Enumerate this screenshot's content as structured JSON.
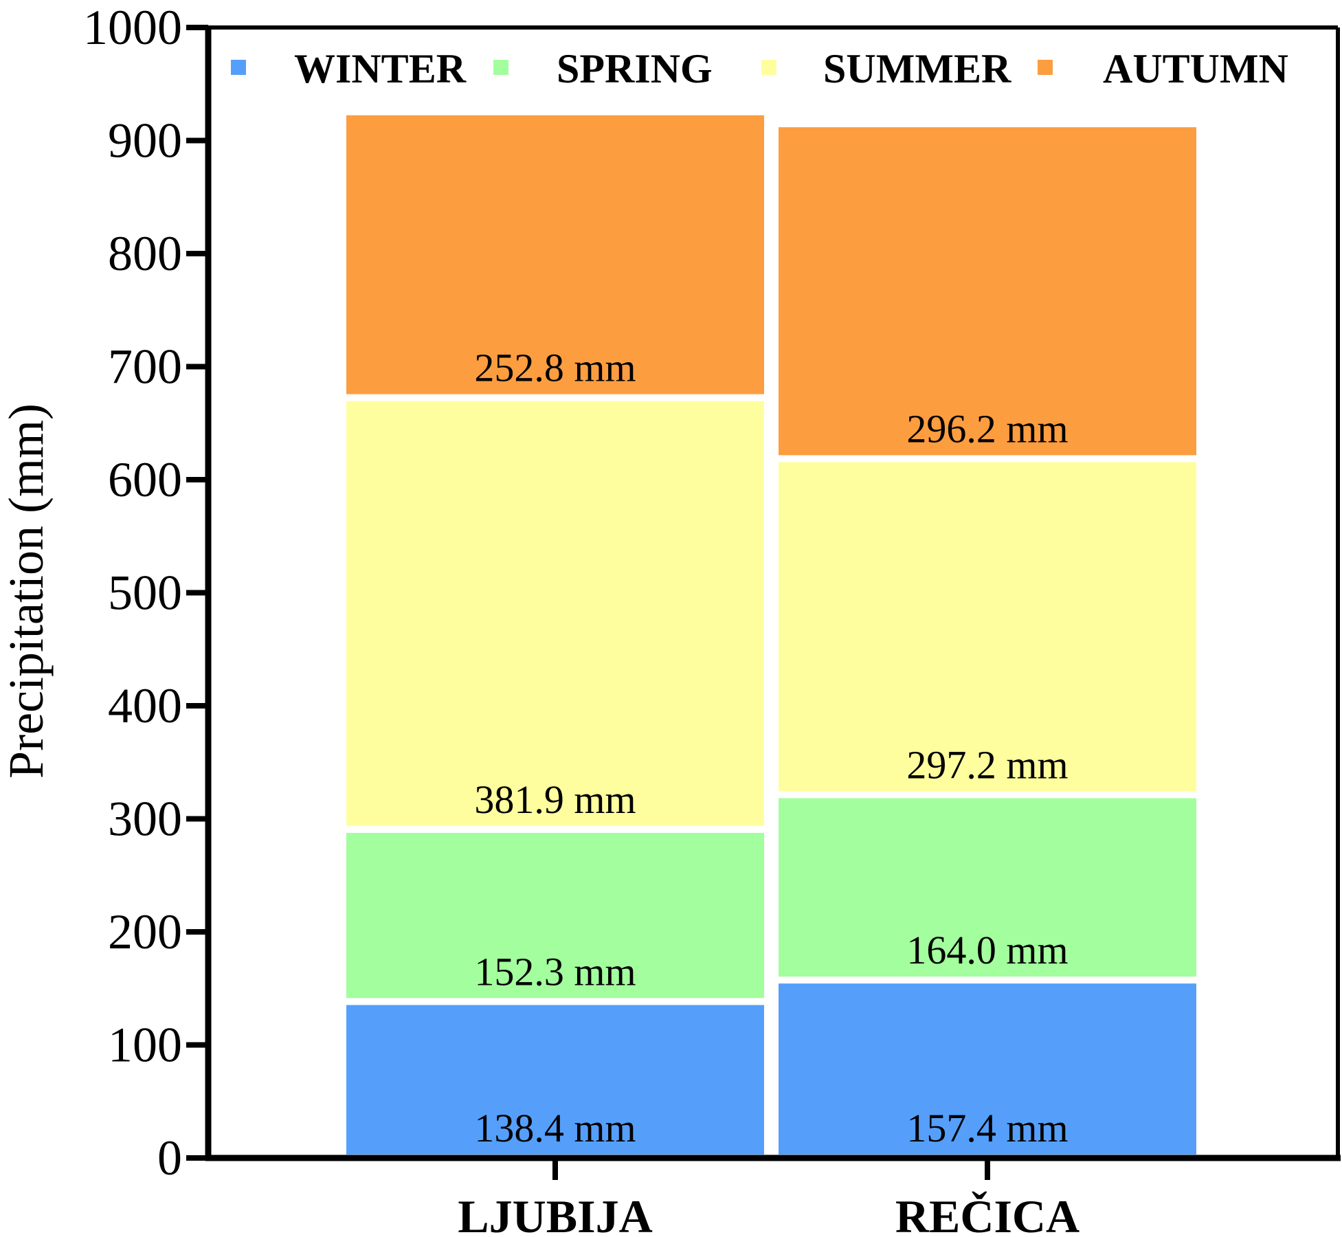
{
  "chart_data": {
    "type": "bar",
    "stacked": true,
    "title": "",
    "xlabel": "",
    "ylabel": "Precipitation (mm)",
    "ylim": [
      0,
      1000
    ],
    "yticks": [
      0,
      100,
      200,
      300,
      400,
      500,
      600,
      700,
      800,
      900,
      1000
    ],
    "grid": false,
    "legend_position": "top",
    "categories": [
      "LJUBIJA",
      "REČICA"
    ],
    "series": [
      {
        "name": "WINTER",
        "color": "#559ffb",
        "values": [
          138.4,
          157.4
        ],
        "labels": [
          "138.4 mm",
          "157.4 mm"
        ]
      },
      {
        "name": "SPRING",
        "color": "#a3fe9e",
        "values": [
          152.3,
          164.0
        ],
        "labels": [
          "152.3 mm",
          "164.0 mm"
        ]
      },
      {
        "name": "SUMMER",
        "color": "#fefe9e",
        "values": [
          381.9,
          297.2
        ],
        "labels": [
          "381.9 mm",
          "297.2 mm"
        ]
      },
      {
        "name": "AUTUMN",
        "color": "#fc9d40",
        "values": [
          252.8,
          296.2
        ],
        "labels": [
          "252.8 mm",
          "296.2 mm"
        ]
      }
    ]
  }
}
